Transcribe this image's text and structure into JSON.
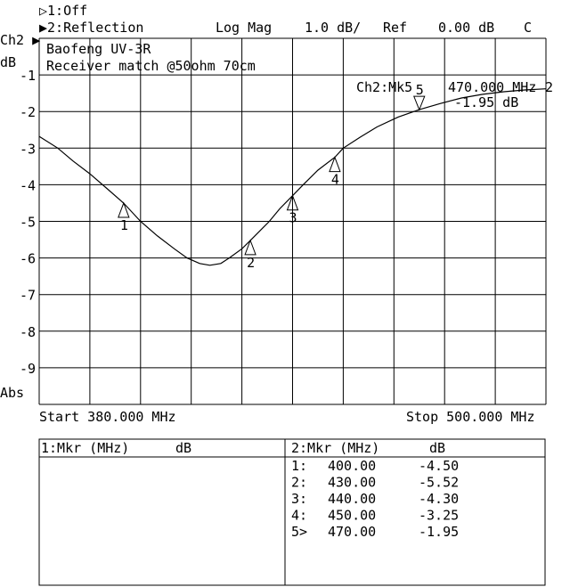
{
  "header": {
    "ch1_label": "▷1:Off",
    "ch2_label": "▶2:Reflection",
    "format": "Log Mag",
    "scale": "1.0 dB/",
    "ref_label": "Ref",
    "ref_value": "0.00 dB",
    "cal_flag": "C"
  },
  "axis": {
    "channel": "Ch2 ▶",
    "unit": "dB",
    "mode": "Abs",
    "start": "Start 380.000 MHz",
    "stop": "Stop 500.000 MHz"
  },
  "annotation": {
    "line1": "Baofeng UV-3R",
    "line2": "Receiver match @50ohm 70cm"
  },
  "active_marker": {
    "name": "Ch2:Mk5",
    "freq": "470.000 MHz",
    "value": "-1.95 dB",
    "trace_label": "2"
  },
  "table": {
    "left_header": {
      "mkr": "1:Mkr (MHz)",
      "unit": "dB"
    },
    "right_header": {
      "mkr": "2:Mkr (MHz)",
      "unit": "dB"
    },
    "rows": [
      {
        "id": "1:",
        "freq": "400.00",
        "db": "-4.50"
      },
      {
        "id": "2:",
        "freq": "430.00",
        "db": "-5.52"
      },
      {
        "id": "3:",
        "freq": "440.00",
        "db": "-4.30"
      },
      {
        "id": "4:",
        "freq": "450.00",
        "db": "-3.25"
      },
      {
        "id": "5>",
        "freq": "470.00",
        "db": "-1.95"
      }
    ]
  },
  "chart_data": {
    "type": "line",
    "xlabel": "",
    "ylabel": "dB",
    "xlim": [
      380,
      500
    ],
    "ylim": [
      -10,
      0
    ],
    "grid": true,
    "yticks": [
      "-1",
      "-2",
      "-3",
      "-4",
      "-5",
      "-6",
      "-7",
      "-8",
      "-9"
    ],
    "series": [
      {
        "points": [
          [
            380,
            -2.68
          ],
          [
            384.4,
            -3.0
          ],
          [
            388,
            -3.35
          ],
          [
            392,
            -3.7
          ],
          [
            396,
            -4.1
          ],
          [
            400,
            -4.5
          ],
          [
            404,
            -5.0
          ],
          [
            408,
            -5.4
          ],
          [
            412,
            -5.75
          ],
          [
            415,
            -6.0
          ],
          [
            418,
            -6.15
          ],
          [
            420.4,
            -6.2
          ],
          [
            423,
            -6.15
          ],
          [
            425,
            -6.0
          ],
          [
            428,
            -5.75
          ],
          [
            430,
            -5.52
          ],
          [
            434.5,
            -5.0
          ],
          [
            437,
            -4.65
          ],
          [
            440,
            -4.3
          ],
          [
            442.5,
            -4.0
          ],
          [
            446,
            -3.6
          ],
          [
            450,
            -3.25
          ],
          [
            452,
            -3.0
          ],
          [
            456,
            -2.7
          ],
          [
            460,
            -2.42
          ],
          [
            465,
            -2.15
          ],
          [
            470,
            -1.95
          ],
          [
            475,
            -1.78
          ],
          [
            480,
            -1.63
          ],
          [
            485,
            -1.53
          ],
          [
            490,
            -1.46
          ],
          [
            495,
            -1.41
          ],
          [
            500,
            -1.38
          ]
        ]
      }
    ],
    "markers": [
      {
        "label": "1",
        "x": 400,
        "y": -4.5,
        "active": false
      },
      {
        "label": "2",
        "x": 430,
        "y": -5.52,
        "active": false
      },
      {
        "label": "3",
        "x": 440,
        "y": -4.3,
        "active": false
      },
      {
        "label": "4",
        "x": 450,
        "y": -3.25,
        "active": false
      },
      {
        "label": "5",
        "x": 470,
        "y": -1.95,
        "active": true
      }
    ]
  }
}
